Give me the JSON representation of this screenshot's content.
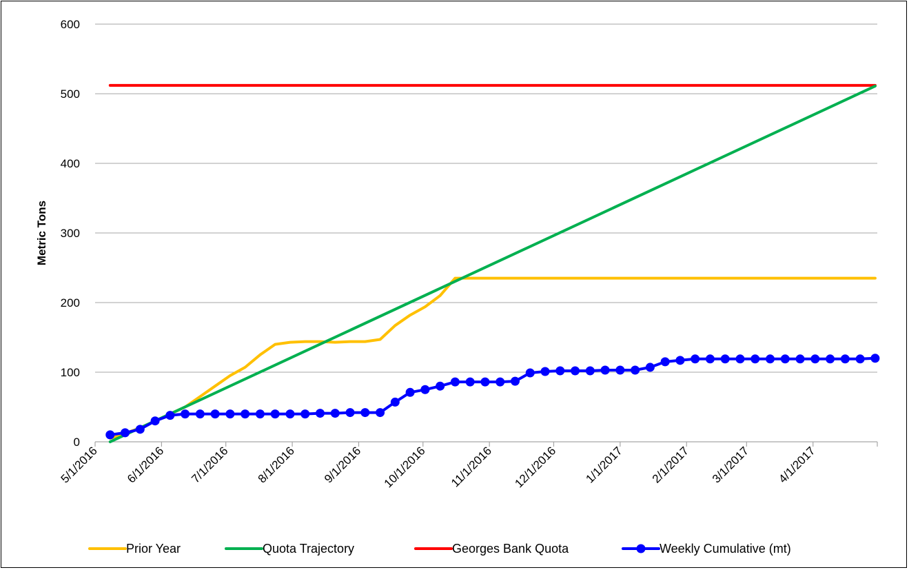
{
  "chart_data": {
    "type": "line",
    "title": "",
    "xlabel": "",
    "ylabel": "Metric Tons",
    "ylim": [
      0,
      600
    ],
    "yticks": [
      0,
      100,
      200,
      300,
      400,
      500,
      600
    ],
    "xlim": [
      "2016-05-01",
      "2017-05-01"
    ],
    "xtick_labels": [
      "5/1/2016",
      "6/1/2016",
      "7/1/2016",
      "8/1/2016",
      "9/1/2016",
      "10/1/2016",
      "11/1/2016",
      "12/1/2016",
      "1/1/2017",
      "2/1/2017",
      "3/1/2017",
      "4/1/2017"
    ],
    "xtick_dates": [
      "2016-05-01",
      "2016-06-01",
      "2016-07-01",
      "2016-08-01",
      "2016-09-01",
      "2016-10-01",
      "2016-11-01",
      "2016-12-01",
      "2017-01-01",
      "2017-02-01",
      "2017-03-01",
      "2017-04-01"
    ],
    "grid": "horizontal",
    "legend_position": "bottom",
    "colors": {
      "prior_year": "#FFC000",
      "quota_trajectory": "#00B050",
      "georges_bank_quota": "#FF0000",
      "weekly_cumulative": "#0000FF"
    },
    "series": [
      {
        "name": "Prior Year",
        "style": "line",
        "x": [
          "2016-05-08",
          "2016-05-15",
          "2016-05-22",
          "2016-05-29",
          "2016-06-05",
          "2016-06-12",
          "2016-06-19",
          "2016-06-26",
          "2016-07-03",
          "2016-07-10",
          "2016-07-17",
          "2016-07-24",
          "2016-07-31",
          "2016-08-07",
          "2016-08-14",
          "2016-08-21",
          "2016-08-28",
          "2016-09-04",
          "2016-09-11",
          "2016-09-18",
          "2016-09-25",
          "2016-10-02",
          "2016-10-09",
          "2016-10-16",
          "2016-10-23",
          "2016-10-30",
          "2016-11-06",
          "2016-12-01",
          "2017-01-01",
          "2017-02-01",
          "2017-03-01",
          "2017-04-01",
          "2017-04-30"
        ],
        "y": [
          5,
          12,
          20,
          30,
          40,
          50,
          65,
          80,
          95,
          107,
          125,
          140,
          143,
          144,
          144,
          143,
          144,
          144,
          147,
          167,
          182,
          194,
          210,
          235,
          235,
          235,
          235,
          235,
          235,
          235,
          235,
          235,
          235
        ]
      },
      {
        "name": "Quota Trajectory",
        "style": "line",
        "x": [
          "2016-05-08",
          "2017-04-30"
        ],
        "y": [
          0,
          511
        ]
      },
      {
        "name": "Georges Bank Quota",
        "style": "line",
        "x": [
          "2016-05-08",
          "2017-04-30"
        ],
        "y": [
          512,
          512
        ]
      },
      {
        "name": "Weekly Cumulative (mt)",
        "style": "line-marker",
        "x": [
          "2016-05-08",
          "2016-05-15",
          "2016-05-22",
          "2016-05-29",
          "2016-06-05",
          "2016-06-12",
          "2016-06-19",
          "2016-06-26",
          "2016-07-03",
          "2016-07-10",
          "2016-07-17",
          "2016-07-24",
          "2016-07-31",
          "2016-08-07",
          "2016-08-14",
          "2016-08-21",
          "2016-08-28",
          "2016-09-04",
          "2016-09-11",
          "2016-09-18",
          "2016-09-25",
          "2016-10-02",
          "2016-10-09",
          "2016-10-16",
          "2016-10-23",
          "2016-10-30",
          "2016-11-06",
          "2016-11-13",
          "2016-11-20",
          "2016-11-27",
          "2016-12-04",
          "2016-12-11",
          "2016-12-18",
          "2016-12-25",
          "2017-01-01",
          "2017-01-08",
          "2017-01-15",
          "2017-01-22",
          "2017-01-29",
          "2017-02-05",
          "2017-02-12",
          "2017-02-19",
          "2017-02-26",
          "2017-03-05",
          "2017-03-12",
          "2017-03-19",
          "2017-03-26",
          "2017-04-02",
          "2017-04-09",
          "2017-04-16",
          "2017-04-23",
          "2017-04-30"
        ],
        "y": [
          10,
          13,
          18,
          30,
          38,
          40,
          40,
          40,
          40,
          40,
          40,
          40,
          40,
          40,
          41,
          41,
          42,
          42,
          42,
          57,
          71,
          75,
          80,
          86,
          86,
          86,
          86,
          87,
          99,
          101,
          102,
          102,
          102,
          103,
          103,
          103,
          107,
          115,
          117,
          119,
          119,
          119,
          119,
          119,
          119,
          119,
          119,
          119,
          119,
          119,
          119,
          120
        ]
      }
    ]
  }
}
